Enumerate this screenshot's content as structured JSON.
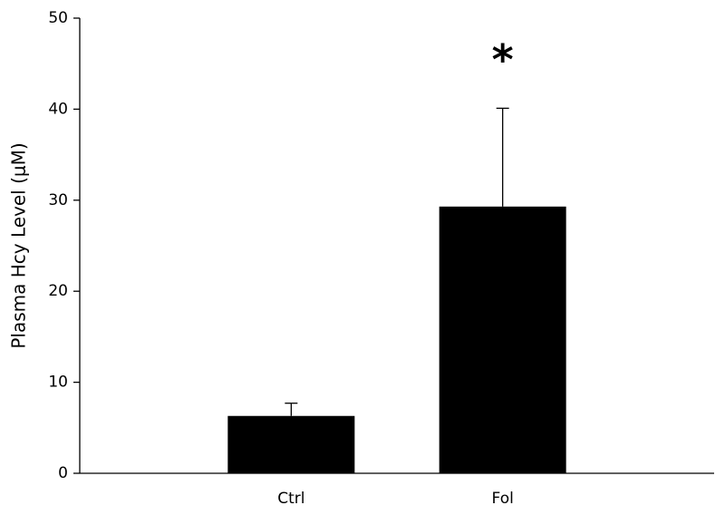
{
  "chart_data": {
    "type": "bar",
    "y_label": "Plasma Hcy Level (μM)",
    "categories": [
      "Ctrl",
      "Fol"
    ],
    "values": [
      6.3,
      29.3
    ],
    "errors": [
      1.4,
      10.8
    ],
    "color": "#000000",
    "annotation": "*",
    "ylim": [
      0,
      50
    ],
    "yticks": [
      0,
      10,
      20,
      30,
      40,
      50
    ],
    "grid": false
  }
}
